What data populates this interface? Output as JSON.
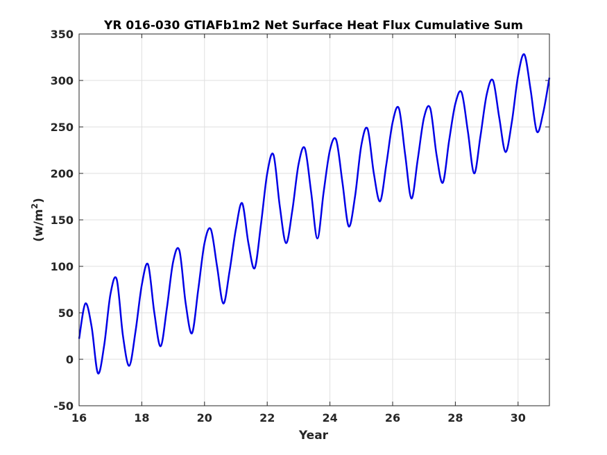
{
  "chart_data": {
    "type": "line",
    "title": "YR 016-030 GTIAFb1m2 Net Surface Heat Flux  Cumulative Sum",
    "xlabel": "Year",
    "ylabel": "(w/m",
    "ylabel_superscript": "2",
    "ylabel_suffix": ")",
    "xlim": [
      16,
      31
    ],
    "ylim": [
      -50,
      350
    ],
    "xticks": [
      16,
      18,
      20,
      22,
      24,
      26,
      28,
      30
    ],
    "yticks": [
      -50,
      0,
      50,
      100,
      150,
      200,
      250,
      300,
      350
    ],
    "grid": true,
    "series": [
      {
        "color": "#0000e6",
        "x": [
          16.0,
          16.2,
          16.4,
          16.6,
          16.8,
          17.0,
          17.2,
          17.4,
          17.6,
          17.8,
          18.0,
          18.2,
          18.4,
          18.6,
          18.8,
          19.0,
          19.2,
          19.4,
          19.6,
          19.8,
          20.0,
          20.2,
          20.4,
          20.6,
          20.8,
          21.0,
          21.2,
          21.4,
          21.6,
          21.8,
          22.0,
          22.2,
          22.4,
          22.6,
          22.8,
          23.0,
          23.2,
          23.4,
          23.6,
          23.8,
          24.0,
          24.2,
          24.4,
          24.6,
          24.8,
          25.0,
          25.2,
          25.4,
          25.6,
          25.8,
          26.0,
          26.2,
          26.4,
          26.6,
          26.8,
          27.0,
          27.2,
          27.4,
          27.6,
          27.8,
          28.0,
          28.2,
          28.4,
          28.6,
          28.8,
          29.0,
          29.2,
          29.4,
          29.6,
          29.8,
          30.0,
          30.2,
          30.4,
          30.6,
          30.8,
          31.0
        ],
        "y": [
          22,
          60,
          35,
          -15,
          15,
          70,
          86,
          25,
          -7,
          30,
          80,
          102,
          50,
          14,
          55,
          105,
          117,
          60,
          28,
          75,
          125,
          140,
          100,
          60,
          95,
          140,
          168,
          125,
          98,
          145,
          200,
          220,
          165,
          125,
          160,
          210,
          227,
          180,
          130,
          180,
          225,
          236,
          190,
          143,
          175,
          230,
          248,
          200,
          170,
          210,
          255,
          270,
          220,
          173,
          215,
          260,
          270,
          220,
          190,
          235,
          275,
          287,
          245,
          200,
          240,
          285,
          300,
          260,
          223,
          255,
          305,
          328,
          290,
          245,
          265,
          303
        ]
      }
    ]
  }
}
